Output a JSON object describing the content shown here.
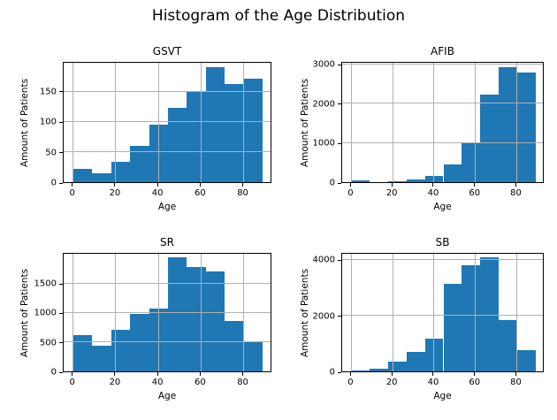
{
  "figure": {
    "title": "Histogram of the Age Distribution",
    "bar_color": "#1f77b4",
    "grid_color": "#b0b0b0",
    "text_color": "#000000"
  },
  "chart_data": [
    {
      "type": "bar",
      "title": "GSVT",
      "xlabel": "Age",
      "ylabel": "Amount of Patients",
      "bin_edges": [
        0,
        8.9,
        17.8,
        26.7,
        35.6,
        44.5,
        53.4,
        62.3,
        71.2,
        80.1,
        89
      ],
      "values": [
        22,
        15,
        33,
        60,
        95,
        122,
        150,
        190,
        162,
        170
      ],
      "xticks": [
        0,
        20,
        40,
        60,
        80
      ],
      "yticks": [
        0,
        50,
        100,
        150
      ],
      "xlim": [
        -4.45,
        93.45
      ],
      "ylim": [
        0,
        199.5
      ],
      "grid": true,
      "legend": false
    },
    {
      "type": "bar",
      "title": "AFIB",
      "xlabel": "Age",
      "ylabel": "Amount of Patients",
      "bin_edges": [
        0,
        8.9,
        17.8,
        26.7,
        35.6,
        44.5,
        53.4,
        62.3,
        71.2,
        80.1,
        89
      ],
      "values": [
        35,
        5,
        30,
        75,
        160,
        440,
        1020,
        2230,
        2930,
        2790
      ],
      "xticks": [
        0,
        20,
        40,
        60,
        80
      ],
      "yticks": [
        0,
        1000,
        2000,
        3000
      ],
      "xlim": [
        -4.45,
        93.45
      ],
      "ylim": [
        0,
        3077
      ],
      "grid": true,
      "legend": false
    },
    {
      "type": "bar",
      "title": "SR",
      "xlabel": "Age",
      "ylabel": "Amount of Patients",
      "bin_edges": [
        0,
        8.9,
        17.8,
        26.7,
        35.6,
        44.5,
        53.4,
        62.3,
        71.2,
        80.1,
        89
      ],
      "values": [
        610,
        440,
        700,
        980,
        1060,
        1930,
        1770,
        1700,
        860,
        510
      ],
      "xticks": [
        0,
        20,
        40,
        60,
        80
      ],
      "yticks": [
        0,
        500,
        1000,
        1500
      ],
      "xlim": [
        -4.45,
        93.45
      ],
      "ylim": [
        0,
        2027
      ],
      "grid": true,
      "legend": false
    },
    {
      "type": "bar",
      "title": "SB",
      "xlabel": "Age",
      "ylabel": "Amount of Patients",
      "bin_edges": [
        0,
        8.9,
        17.8,
        26.7,
        35.6,
        44.5,
        53.4,
        62.3,
        71.2,
        80.1,
        89
      ],
      "values": [
        30,
        85,
        350,
        680,
        1180,
        3110,
        3770,
        4050,
        1820,
        770
      ],
      "xticks": [
        0,
        20,
        40,
        60,
        80
      ],
      "yticks": [
        0,
        2000,
        4000
      ],
      "xlim": [
        -4.45,
        93.45
      ],
      "ylim": [
        0,
        4253
      ],
      "grid": true,
      "legend": false
    }
  ]
}
